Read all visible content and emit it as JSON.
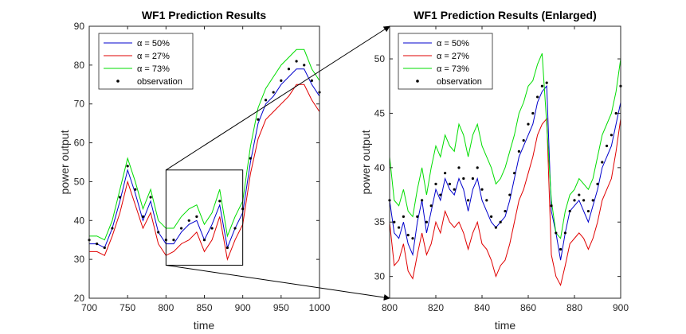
{
  "chart_data": [
    {
      "type": "line",
      "title": "WF1 Prediction Results",
      "xlabel": "time",
      "ylabel": "power output",
      "xlim": [
        700,
        1000
      ],
      "ylim": [
        20,
        90
      ],
      "xticks": [
        700,
        750,
        800,
        850,
        900,
        950,
        1000
      ],
      "yticks": [
        20,
        30,
        40,
        50,
        60,
        70,
        80,
        90
      ],
      "legend_position": "top-left",
      "legend": [
        "α = 50%",
        "α = 27%",
        "α = 73%",
        "observation"
      ],
      "grid": false,
      "zoom_box": {
        "x": [
          800,
          900
        ],
        "y": [
          28.5,
          53
        ]
      },
      "x": [
        700,
        710,
        720,
        730,
        740,
        750,
        760,
        770,
        780,
        790,
        800,
        810,
        820,
        830,
        840,
        850,
        860,
        870,
        880,
        890,
        900,
        910,
        920,
        930,
        940,
        950,
        960,
        970,
        980,
        990,
        1000
      ],
      "series": [
        {
          "name": "α = 50%",
          "color": "#0000cc",
          "values": [
            34,
            34,
            33,
            38,
            45,
            53,
            47,
            40,
            45,
            37,
            34,
            34,
            37,
            39,
            40,
            35,
            39,
            44,
            33,
            38,
            42,
            55,
            65,
            70,
            72,
            75,
            77,
            79,
            79,
            75,
            72
          ]
        },
        {
          "name": "α = 27%",
          "color": "#e00000",
          "values": [
            32,
            32,
            31,
            36,
            42,
            50,
            44,
            38,
            42,
            34,
            31,
            32,
            34,
            35,
            37,
            32,
            35,
            41,
            30,
            35,
            39,
            52,
            61,
            66,
            68,
            70,
            72,
            75,
            75,
            71,
            68
          ]
        },
        {
          "name": "α = 73%",
          "color": "#00dd00",
          "values": [
            36,
            36,
            35,
            40,
            48,
            56,
            50,
            43,
            48,
            40,
            38,
            38,
            41,
            43,
            44,
            39,
            42,
            48,
            36,
            41,
            45,
            59,
            69,
            74,
            77,
            80,
            82,
            84,
            84,
            79,
            76
          ]
        },
        {
          "name": "observation",
          "color": "#000000",
          "marker": "dot",
          "values": [
            35,
            34,
            33,
            38,
            46,
            54,
            48,
            41,
            46,
            37,
            35,
            35,
            38,
            40,
            41,
            35,
            38,
            45,
            33,
            38,
            43,
            56,
            66,
            71,
            73,
            76,
            79,
            81,
            80,
            76,
            73
          ]
        }
      ]
    },
    {
      "type": "line",
      "title": "WF1 Prediction Results (Enlarged)",
      "xlabel": "time",
      "ylabel": "power output",
      "xlim": [
        800,
        900
      ],
      "ylim": [
        28,
        53
      ],
      "xticks": [
        800,
        820,
        840,
        860,
        880,
        900
      ],
      "yticks": [
        30,
        35,
        40,
        45,
        50
      ],
      "legend_position": "top-left",
      "legend": [
        "α = 50%",
        "α = 27%",
        "α = 73%",
        "observation"
      ],
      "grid": false,
      "x": [
        800,
        802,
        804,
        806,
        808,
        810,
        812,
        814,
        816,
        818,
        820,
        822,
        824,
        826,
        828,
        830,
        832,
        834,
        836,
        838,
        840,
        842,
        844,
        846,
        848,
        850,
        852,
        854,
        856,
        858,
        860,
        862,
        864,
        866,
        868,
        870,
        872,
        874,
        876,
        878,
        880,
        882,
        884,
        886,
        888,
        890,
        892,
        894,
        896,
        898,
        900
      ],
      "series": [
        {
          "name": "α = 50%",
          "color": "#0000cc",
          "values": [
            37,
            34,
            33.5,
            35,
            33,
            32,
            35,
            37,
            34,
            36,
            38,
            37,
            39,
            38,
            37.5,
            39,
            38,
            36,
            38,
            39,
            37,
            36,
            35,
            34.5,
            35,
            35.5,
            37,
            39,
            41,
            42,
            43,
            44,
            46,
            47,
            47.5,
            36,
            34,
            31.5,
            34,
            36,
            36.5,
            37,
            36,
            35,
            36.5,
            38,
            40,
            41,
            42,
            44,
            46
          ]
        },
        {
          "name": "α = 27%",
          "color": "#e00000",
          "values": [
            35,
            31,
            31.5,
            33,
            30.5,
            29.8,
            32,
            34,
            32,
            33,
            35,
            34,
            36,
            35,
            34.5,
            35,
            34,
            32.5,
            34,
            35,
            33,
            32.5,
            31.5,
            30,
            31,
            31.5,
            33,
            35,
            37,
            38,
            39.5,
            41,
            43,
            44,
            44.5,
            32,
            30,
            29.2,
            31,
            33,
            33.5,
            34,
            33.5,
            32.5,
            33.5,
            35,
            37,
            38,
            39,
            41.5,
            44.5
          ]
        },
        {
          "name": "α = 73%",
          "color": "#00dd00",
          "values": [
            41,
            37,
            36.5,
            38,
            36,
            35.5,
            38,
            40,
            37.5,
            40,
            42,
            41,
            43,
            42,
            41.5,
            44,
            43,
            41,
            43,
            44,
            42,
            41,
            40,
            38.5,
            39,
            40,
            41.5,
            43,
            45,
            46,
            47.5,
            48,
            49.5,
            50.5,
            44,
            37,
            34,
            33.5,
            36,
            37.5,
            38,
            39,
            38.5,
            38,
            39,
            41,
            43,
            44,
            45,
            47,
            50
          ]
        },
        {
          "name": "observation",
          "color": "#000000",
          "marker": "dot",
          "values": [
            37,
            35,
            34.5,
            35.5,
            33.8,
            33.5,
            35.5,
            37,
            35,
            36.5,
            38.5,
            37.5,
            39.5,
            38.5,
            38,
            40,
            39,
            37,
            39,
            40,
            38,
            37,
            35.5,
            34.5,
            35,
            36,
            37.5,
            39.5,
            41.5,
            42.5,
            44,
            45,
            46.5,
            47.5,
            47.8,
            36.5,
            34,
            32.5,
            34,
            36,
            37,
            37.5,
            37,
            36,
            37,
            38.5,
            40.5,
            42,
            43,
            45,
            47.5
          ]
        }
      ]
    }
  ]
}
